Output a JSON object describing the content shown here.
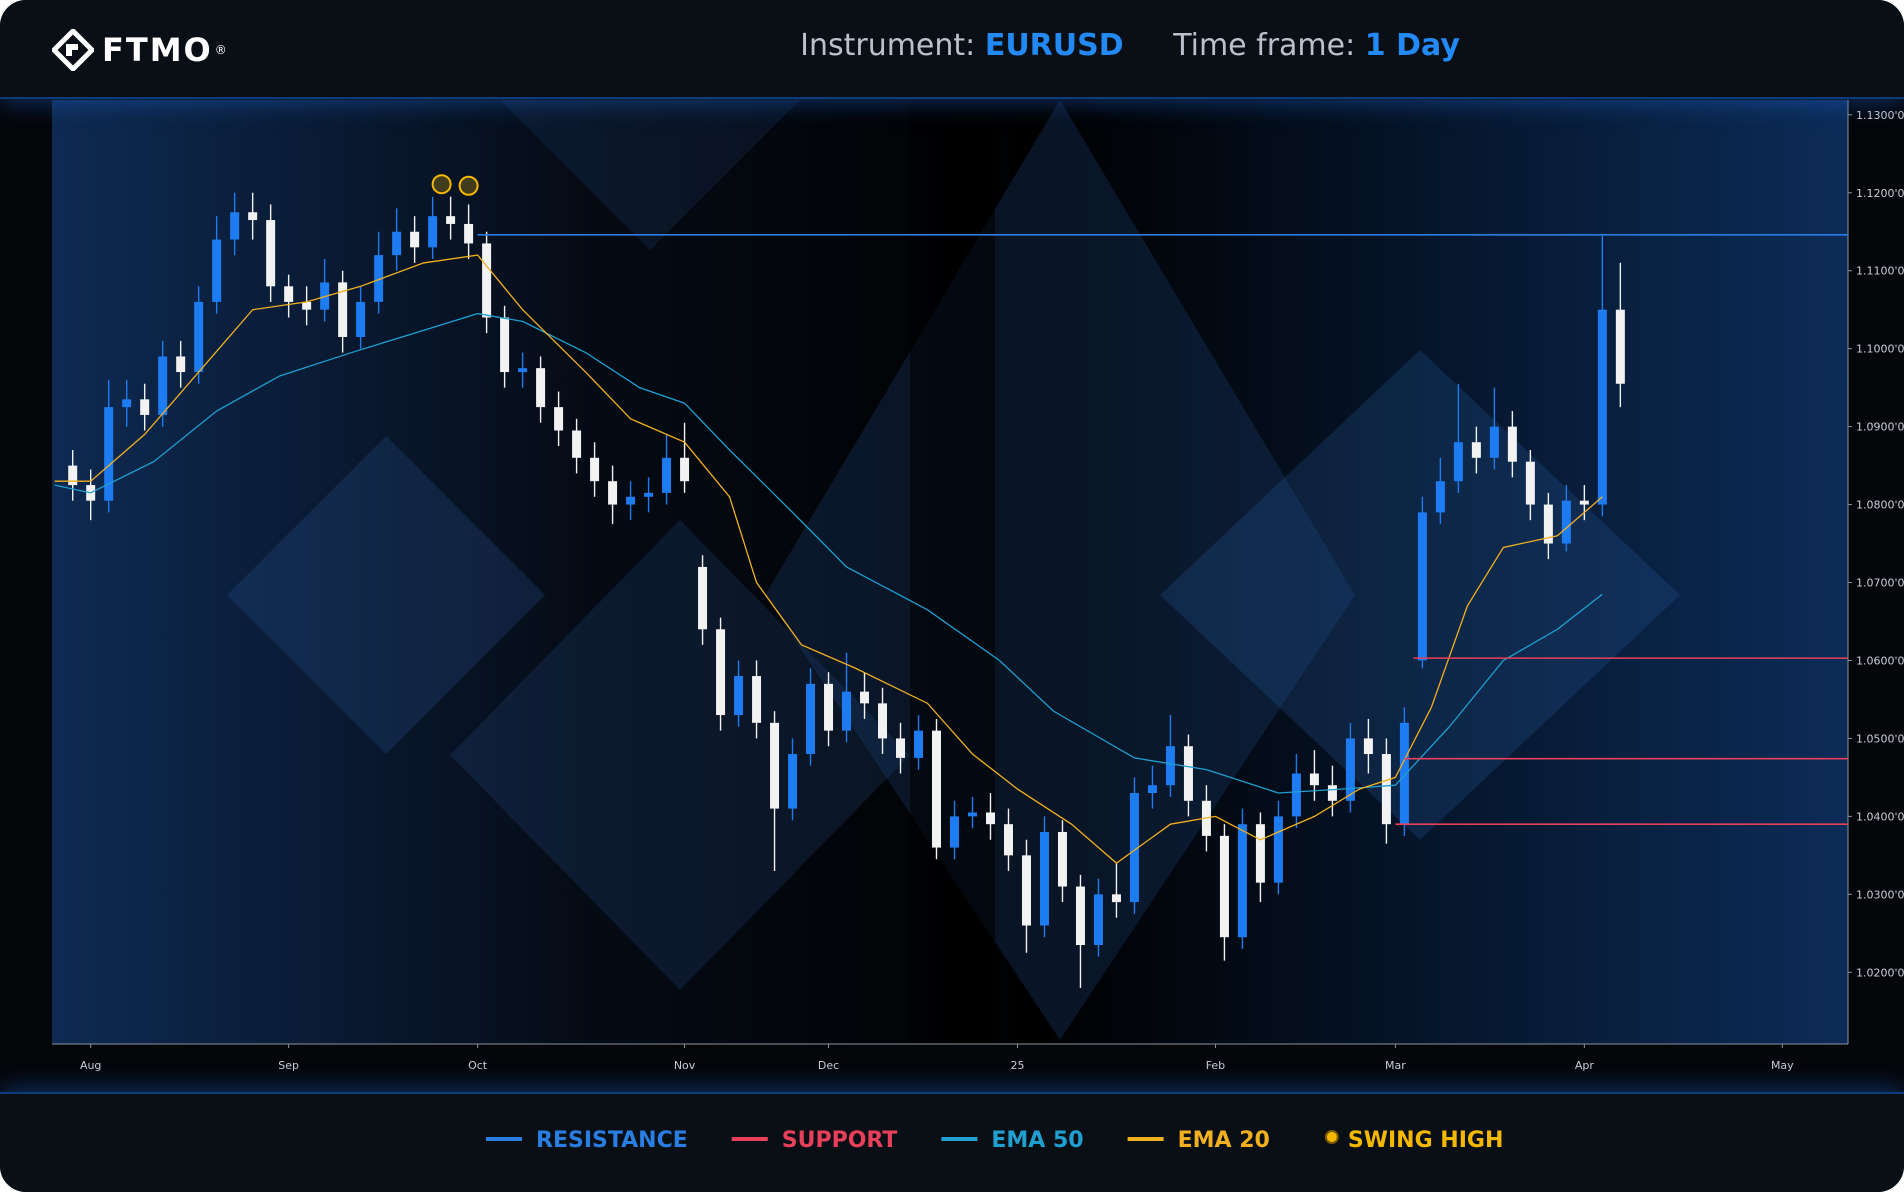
{
  "header": {
    "logo": "FTMO",
    "logo_mark": "®",
    "instrument_label": "Instrument:",
    "instrument": "EURUSD",
    "timeframe_label": "Time frame:",
    "timeframe": "1 Day"
  },
  "chart_data": {
    "type": "candlestick",
    "up_color": "#1d7cf2",
    "down_color": "#f2f2f2",
    "x": [
      -2,
      0,
      2,
      4,
      6,
      8,
      10,
      12,
      14,
      16,
      18,
      20,
      22,
      24,
      26,
      28,
      30,
      32,
      34,
      36,
      38,
      40,
      42,
      44,
      46,
      48,
      50,
      52,
      54,
      56,
      58,
      60,
      62,
      64,
      66,
      68,
      70,
      72,
      74,
      76,
      78,
      80,
      82,
      84,
      86,
      88,
      90,
      92,
      94,
      96,
      98,
      100,
      102,
      104,
      106,
      108,
      110,
      112,
      114,
      116,
      118,
      120,
      122,
      124,
      126,
      128,
      130,
      132,
      134,
      136,
      138,
      140,
      142,
      144,
      146,
      148,
      150,
      152,
      154,
      156,
      158,
      160,
      162,
      164,
      166,
      168,
      170
    ],
    "open": [
      1.085,
      1.0825,
      1.0805,
      1.0925,
      1.0935,
      1.0915,
      1.099,
      1.097,
      1.106,
      1.114,
      1.1175,
      1.1165,
      1.108,
      1.106,
      1.105,
      1.1085,
      1.1015,
      1.106,
      1.112,
      1.115,
      1.113,
      1.117,
      1.116,
      1.1135,
      1.104,
      1.097,
      1.0975,
      1.0925,
      1.0895,
      1.086,
      1.083,
      1.08,
      1.081,
      1.0815,
      1.086,
      1.072,
      1.064,
      1.053,
      1.058,
      1.052,
      1.041,
      1.048,
      1.057,
      1.051,
      1.056,
      1.0545,
      1.05,
      1.0475,
      1.051,
      1.036,
      1.04,
      1.0405,
      1.039,
      1.035,
      1.026,
      1.038,
      1.031,
      1.0235,
      1.03,
      1.029,
      1.043,
      1.044,
      1.049,
      1.042,
      1.0375,
      1.0245,
      1.039,
      1.0315,
      1.04,
      1.0455,
      1.044,
      1.042,
      1.05,
      1.048,
      1.039,
      1.06,
      1.079,
      1.083,
      1.088,
      1.086,
      1.09,
      1.0855,
      1.08,
      1.075,
      1.0805,
      1.08,
      1.105
    ],
    "high": [
      1.087,
      1.0845,
      1.096,
      1.096,
      1.0955,
      1.101,
      1.101,
      1.108,
      1.117,
      1.12,
      1.12,
      1.1185,
      1.1095,
      1.108,
      1.1115,
      1.11,
      1.108,
      1.115,
      1.118,
      1.117,
      1.1195,
      1.1195,
      1.1185,
      1.115,
      1.1055,
      1.0995,
      1.099,
      1.0945,
      1.091,
      1.088,
      1.085,
      1.083,
      1.0835,
      1.089,
      1.0905,
      1.0735,
      1.0655,
      1.06,
      1.06,
      1.0535,
      1.05,
      1.059,
      1.0585,
      1.061,
      1.0585,
      1.0565,
      1.052,
      1.053,
      1.0525,
      1.042,
      1.0425,
      1.043,
      1.041,
      1.037,
      1.04,
      1.0395,
      1.0325,
      1.032,
      1.034,
      1.045,
      1.0465,
      1.053,
      1.0505,
      1.044,
      1.039,
      1.041,
      1.0405,
      1.042,
      1.048,
      1.0485,
      1.0465,
      1.052,
      1.0525,
      1.05,
      1.054,
      1.081,
      1.086,
      1.0955,
      1.09,
      1.095,
      1.092,
      1.087,
      1.0815,
      1.0825,
      1.0825,
      1.1145,
      1.111
    ],
    "low": [
      1.0805,
      1.078,
      1.079,
      1.09,
      1.0895,
      1.09,
      1.095,
      1.0955,
      1.1045,
      1.112,
      1.114,
      1.106,
      1.104,
      1.103,
      1.1035,
      1.0995,
      1.1,
      1.1045,
      1.11,
      1.111,
      1.1115,
      1.114,
      1.1115,
      1.102,
      1.095,
      1.095,
      1.0905,
      1.0875,
      1.084,
      1.081,
      1.0775,
      1.078,
      1.079,
      1.08,
      1.0815,
      1.062,
      1.051,
      1.0515,
      1.05,
      1.033,
      1.0395,
      1.0465,
      1.049,
      1.0495,
      1.0525,
      1.048,
      1.0455,
      1.046,
      1.0345,
      1.0345,
      1.0385,
      1.037,
      1.033,
      1.0225,
      1.0245,
      1.029,
      1.018,
      1.022,
      1.027,
      1.0275,
      1.041,
      1.0425,
      1.04,
      1.0355,
      1.0215,
      1.023,
      1.029,
      1.03,
      1.0385,
      1.042,
      1.04,
      1.0405,
      1.0455,
      1.0365,
      1.0375,
      1.059,
      1.0775,
      1.0815,
      1.084,
      1.0845,
      1.0835,
      1.078,
      1.073,
      1.074,
      1.078,
      1.0785,
      1.0925
    ],
    "close": [
      1.0825,
      1.0805,
      1.0925,
      1.0935,
      1.0915,
      1.099,
      1.097,
      1.106,
      1.114,
      1.1175,
      1.1165,
      1.108,
      1.106,
      1.105,
      1.1085,
      1.1015,
      1.106,
      1.112,
      1.115,
      1.113,
      1.117,
      1.116,
      1.1135,
      1.104,
      1.097,
      1.0975,
      1.0925,
      1.0895,
      1.086,
      1.083,
      1.08,
      1.081,
      1.0815,
      1.086,
      1.083,
      1.064,
      1.053,
      1.058,
      1.052,
      1.041,
      1.048,
      1.057,
      1.051,
      1.056,
      1.0545,
      1.05,
      1.0475,
      1.051,
      1.036,
      1.04,
      1.0405,
      1.039,
      1.035,
      1.026,
      1.038,
      1.031,
      1.0235,
      1.03,
      1.029,
      1.043,
      1.044,
      1.049,
      1.042,
      1.0375,
      1.0245,
      1.039,
      1.0315,
      1.04,
      1.0455,
      1.044,
      1.042,
      1.05,
      1.048,
      1.039,
      1.052,
      1.079,
      1.083,
      1.088,
      1.086,
      1.09,
      1.0855,
      1.08,
      1.075,
      1.0805,
      1.08,
      1.105,
      1.0955
    ],
    "series": [
      {
        "name": "EMA 50",
        "color": "#1fa0d0",
        "x": [
          -4,
          0,
          7,
          14,
          21,
          29,
          36,
          43,
          48,
          55,
          61,
          66,
          71,
          78,
          84,
          93,
          101,
          107,
          116,
          124,
          132,
          139,
          145,
          151,
          157,
          163,
          168
        ],
        "values": [
          1.0825,
          1.0815,
          1.0855,
          1.092,
          1.0965,
          1.0995,
          1.102,
          1.1045,
          1.1035,
          1.0995,
          1.095,
          1.093,
          1.087,
          1.079,
          1.072,
          1.0665,
          1.06,
          1.0535,
          1.0475,
          1.046,
          1.043,
          1.0435,
          1.044,
          1.0515,
          1.06,
          1.064,
          1.0685
        ]
      },
      {
        "name": "EMA 20",
        "color": "#f0b020",
        "x": [
          -4,
          0,
          6,
          12,
          18,
          24,
          30,
          37,
          43,
          48,
          55,
          60,
          66,
          71,
          74,
          79,
          85,
          93,
          98,
          103,
          109,
          114,
          120,
          125,
          130,
          136,
          141,
          145,
          149,
          153,
          157,
          163,
          168
        ],
        "values": [
          1.083,
          1.083,
          1.089,
          1.097,
          1.105,
          1.106,
          1.108,
          1.111,
          1.112,
          1.105,
          1.097,
          1.091,
          1.088,
          1.081,
          1.07,
          1.062,
          1.059,
          1.0545,
          1.048,
          1.0435,
          1.039,
          1.034,
          1.039,
          1.04,
          1.037,
          1.04,
          1.0435,
          1.045,
          1.054,
          1.067,
          1.0745,
          1.076,
          1.081
        ]
      }
    ],
    "levels": [
      {
        "name": "RESISTANCE",
        "color": "#2a7de1",
        "x": [
          43
        ],
        "values": [
          1.1146
        ]
      },
      {
        "name": "SUPPORT",
        "color": "#e8405a",
        "x": [
          147,
          146,
          145
        ],
        "values": [
          1.0603,
          1.0474,
          1.039
        ]
      }
    ],
    "markers": {
      "name": "SWING HIGH",
      "color": "#f5b800",
      "x": [
        39,
        42
      ],
      "values": [
        1.1211,
        1.1209
      ]
    },
    "xlim": [
      -4.3,
      195.3
    ],
    "xticks": [
      {
        "value": 0,
        "label": "Aug"
      },
      {
        "value": 22,
        "label": "Sep"
      },
      {
        "value": 43,
        "label": "Oct"
      },
      {
        "value": 66,
        "label": "Nov"
      },
      {
        "value": 82,
        "label": "Dec"
      },
      {
        "value": 103,
        "label": "25"
      },
      {
        "value": 125,
        "label": "Feb"
      },
      {
        "value": 145,
        "label": "Mar"
      },
      {
        "value": 166,
        "label": "Apr"
      },
      {
        "value": 188,
        "label": "May"
      }
    ],
    "ylim": [
      1.0108,
      1.1319
    ],
    "yticks": [
      {
        "value": 1.02,
        "label": "1.0200'0"
      },
      {
        "value": 1.03,
        "label": "1.0300'0"
      },
      {
        "value": 1.04,
        "label": "1.0400'0"
      },
      {
        "value": 1.05,
        "label": "1.0500'0"
      },
      {
        "value": 1.06,
        "label": "1.0600'0"
      },
      {
        "value": 1.07,
        "label": "1.0700'0"
      },
      {
        "value": 1.08,
        "label": "1.0800'0"
      },
      {
        "value": 1.09,
        "label": "1.0900'0"
      },
      {
        "value": 1.1,
        "label": "1.1000'0"
      },
      {
        "value": 1.11,
        "label": "1.1100'0"
      },
      {
        "value": 1.12,
        "label": "1.1200'0"
      },
      {
        "value": 1.13,
        "label": "1.1300'0"
      }
    ]
  }
}
